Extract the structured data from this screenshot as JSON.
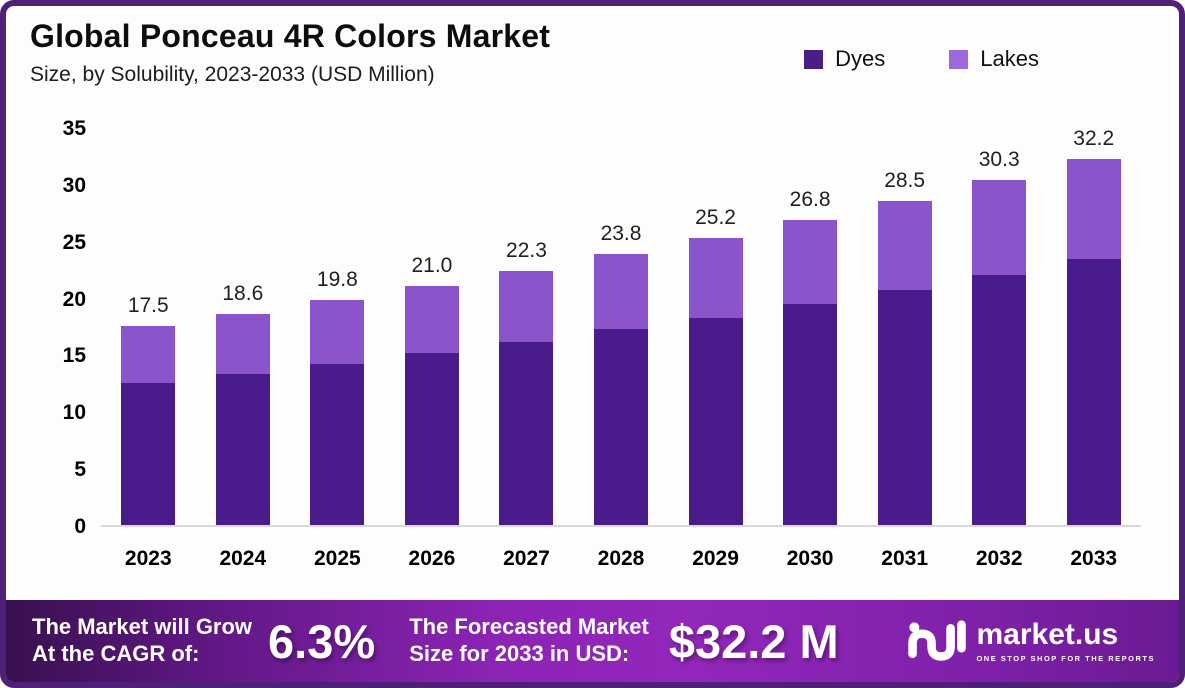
{
  "header": {
    "title": "Global Ponceau 4R Colors Market",
    "subtitle": "Size, by Solubility, 2023-2033 (USD Million)"
  },
  "legend": {
    "items": [
      {
        "label": "Dyes",
        "color": "#4a1e87"
      },
      {
        "label": "Lakes",
        "color": "#9c68db"
      }
    ]
  },
  "chart_data": {
    "type": "bar",
    "stacked": true,
    "title": "Global Ponceau 4R Colors Market Size, by Solubility, 2023-2033 (USD Million)",
    "categories": [
      "2023",
      "2024",
      "2025",
      "2026",
      "2027",
      "2028",
      "2029",
      "2030",
      "2031",
      "2032",
      "2033"
    ],
    "series": [
      {
        "name": "Dyes",
        "color": "#4a1b8a",
        "values": [
          12.5,
          13.3,
          14.2,
          15.1,
          16.1,
          17.2,
          18.2,
          19.4,
          20.7,
          22.0,
          23.4
        ]
      },
      {
        "name": "Lakes",
        "color": "#8c54ca",
        "values": [
          5.0,
          5.3,
          5.6,
          5.9,
          6.2,
          6.6,
          7.0,
          7.4,
          7.8,
          8.3,
          8.8
        ]
      }
    ],
    "totals_labels": [
      "17.5",
      "18.6",
      "19.8",
      "21.0",
      "22.3",
      "23.8",
      "25.2",
      "26.8",
      "28.5",
      "30.3",
      "32.2"
    ],
    "xlabel": "",
    "ylabel": "",
    "ylim": [
      0,
      35
    ],
    "yticks": [
      0,
      5,
      10,
      15,
      20,
      25,
      30,
      35
    ],
    "grid": false,
    "legend_position": "top-right"
  },
  "banner": {
    "cagr_text_line1": "The Market will Grow",
    "cagr_text_line2": "At the CAGR of:",
    "cagr_value": "6.3%",
    "forecast_text_line1": "The Forecasted Market",
    "forecast_text_line2": "Size for 2033 in USD:",
    "forecast_value": "$32.2 M",
    "logo_text": "market.us",
    "logo_tagline": "ONE STOP SHOP FOR THE REPORTS"
  }
}
